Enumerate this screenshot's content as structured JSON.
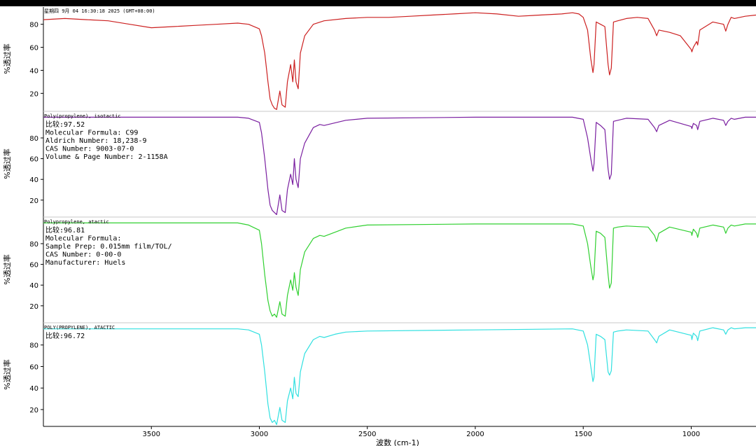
{
  "chart_data": {
    "type": "line",
    "xlabel": "波数 (cm-1)",
    "ylabel": "%透过率",
    "x_reversed": true,
    "xlim": [
      4000,
      700
    ],
    "xticks": [
      3500,
      3000,
      2500,
      2000,
      1500,
      1000
    ],
    "grid": false,
    "panels": [
      {
        "name": "sample",
        "color": "#cc2020",
        "ylim": [
          5,
          95
        ],
        "yticks": [
          20,
          40,
          60,
          80
        ],
        "header": "星期四 9月 04 16:30:18 2025 (GMT+08:00)",
        "info": [],
        "x": [
          4000,
          3900,
          3800,
          3700,
          3600,
          3500,
          3400,
          3300,
          3200,
          3100,
          3050,
          3000,
          2990,
          2975,
          2960,
          2950,
          2940,
          2930,
          2920,
          2905,
          2895,
          2880,
          2870,
          2855,
          2845,
          2838,
          2830,
          2820,
          2810,
          2790,
          2750,
          2700,
          2600,
          2500,
          2400,
          2300,
          2200,
          2100,
          2000,
          1900,
          1800,
          1700,
          1600,
          1550,
          1520,
          1500,
          1480,
          1465,
          1455,
          1450,
          1440,
          1420,
          1400,
          1385,
          1378,
          1370,
          1360,
          1340,
          1300,
          1250,
          1200,
          1170,
          1160,
          1150,
          1100,
          1050,
          1000,
          997,
          990,
          975,
          970,
          960,
          900,
          850,
          840,
          830,
          815,
          800,
          750,
          700
        ],
        "y": [
          84,
          85,
          84,
          83,
          80,
          77,
          78,
          79,
          80,
          81,
          80,
          76,
          70,
          55,
          30,
          15,
          10,
          7,
          6,
          22,
          10,
          8,
          30,
          45,
          30,
          49,
          30,
          24,
          55,
          70,
          80,
          83,
          85,
          86,
          86,
          87,
          88,
          89,
          90,
          89,
          87,
          88,
          89,
          90,
          89,
          86,
          75,
          50,
          38,
          45,
          82,
          80,
          78,
          45,
          36,
          42,
          82,
          83,
          85,
          86,
          85,
          75,
          70,
          75,
          73,
          70,
          58,
          56,
          60,
          65,
          62,
          75,
          82,
          80,
          74,
          80,
          86,
          85,
          87,
          88
        ]
      },
      {
        "name": "Poly(propylene), isotactic",
        "color": "#7a1fa0",
        "ylim": [
          5,
          105
        ],
        "yticks": [
          20,
          40,
          60,
          80
        ],
        "header": "Poly(propylene), isotactic",
        "info": [
          "比较:97.52",
          "Molecular Formula:  C99",
          "Aldrich Number:    18,238-9",
          "CAS Number:     9003-07-0",
          "Volume & Page Number:  2-1158A"
        ],
        "x": [
          4000,
          3100,
          3050,
          3000,
          2990,
          2975,
          2960,
          2950,
          2940,
          2930,
          2920,
          2905,
          2895,
          2880,
          2870,
          2855,
          2845,
          2838,
          2830,
          2820,
          2810,
          2790,
          2750,
          2720,
          2700,
          2600,
          2500,
          2000,
          1550,
          1500,
          1480,
          1465,
          1455,
          1450,
          1440,
          1420,
          1400,
          1385,
          1378,
          1370,
          1360,
          1340,
          1300,
          1200,
          1170,
          1160,
          1150,
          1100,
          1000,
          997,
          990,
          975,
          970,
          960,
          900,
          850,
          840,
          830,
          815,
          800,
          750,
          700
        ],
        "y": [
          100,
          100,
          99,
          95,
          85,
          60,
          30,
          15,
          10,
          8,
          6,
          25,
          10,
          8,
          30,
          45,
          35,
          60,
          40,
          32,
          60,
          75,
          90,
          93,
          92,
          97,
          99,
          100,
          100,
          98,
          80,
          60,
          48,
          55,
          95,
          92,
          88,
          50,
          40,
          45,
          96,
          97,
          99,
          98,
          90,
          86,
          92,
          97,
          91,
          89,
          94,
          92,
          88,
          96,
          99,
          97,
          92,
          96,
          99,
          98,
          100,
          100
        ]
      },
      {
        "name": "Polypropylene, atactic",
        "color": "#30d030",
        "ylim": [
          5,
          105
        ],
        "yticks": [
          20,
          40,
          60,
          80
        ],
        "header": "Polypropylene, atactic",
        "info": [
          "比较:96.81",
          "Molecular Formula:",
          "Sample Prep:  0.015mm film/TOL/",
          "CAS Number:        0-00-0",
          "Manufacturer:  Huels"
        ],
        "x": [
          4000,
          3100,
          3050,
          3000,
          2990,
          2975,
          2960,
          2950,
          2940,
          2930,
          2920,
          2905,
          2895,
          2880,
          2870,
          2855,
          2845,
          2838,
          2830,
          2820,
          2810,
          2790,
          2750,
          2720,
          2700,
          2650,
          2600,
          2500,
          2000,
          1550,
          1500,
          1480,
          1465,
          1455,
          1450,
          1440,
          1420,
          1400,
          1385,
          1378,
          1370,
          1360,
          1340,
          1300,
          1200,
          1170,
          1160,
          1150,
          1100,
          1000,
          997,
          990,
          975,
          970,
          960,
          900,
          850,
          840,
          830,
          815,
          800,
          750,
          700
        ],
        "y": [
          100,
          100,
          98,
          93,
          80,
          50,
          25,
          15,
          10,
          12,
          9,
          24,
          12,
          10,
          30,
          45,
          35,
          52,
          38,
          30,
          55,
          72,
          85,
          88,
          87,
          91,
          95,
          98,
          99,
          99,
          97,
          80,
          58,
          45,
          50,
          92,
          90,
          86,
          50,
          37,
          42,
          95,
          96,
          97,
          96,
          88,
          82,
          90,
          96,
          91,
          88,
          94,
          90,
          86,
          95,
          98,
          96,
          90,
          95,
          98,
          97,
          99,
          99
        ]
      },
      {
        "name": "POLY(PROPYLENE), ATACTIC",
        "color": "#30e0e0",
        "ylim": [
          5,
          100
        ],
        "yticks": [
          20,
          40,
          60,
          80
        ],
        "header": "POLY(PROPYLENE), ATACTIC",
        "info": [
          "比较:96.72"
        ],
        "x": [
          4000,
          3100,
          3050,
          3000,
          2990,
          2975,
          2960,
          2950,
          2940,
          2930,
          2920,
          2905,
          2895,
          2880,
          2870,
          2855,
          2845,
          2838,
          2830,
          2820,
          2810,
          2790,
          2750,
          2720,
          2700,
          2650,
          2600,
          2500,
          2000,
          1550,
          1500,
          1480,
          1465,
          1455,
          1450,
          1440,
          1420,
          1400,
          1385,
          1378,
          1370,
          1360,
          1340,
          1300,
          1200,
          1170,
          1160,
          1150,
          1100,
          1000,
          997,
          990,
          975,
          970,
          960,
          900,
          850,
          840,
          830,
          815,
          800,
          750,
          700
        ],
        "y": [
          95,
          95,
          94,
          90,
          80,
          55,
          25,
          12,
          8,
          10,
          6,
          22,
          10,
          8,
          28,
          40,
          30,
          50,
          35,
          32,
          55,
          72,
          85,
          88,
          87,
          90,
          92,
          93,
          94,
          95,
          93,
          80,
          60,
          46,
          50,
          90,
          88,
          85,
          55,
          52,
          56,
          92,
          93,
          94,
          93,
          85,
          82,
          88,
          94,
          89,
          85,
          91,
          88,
          84,
          93,
          96,
          94,
          90,
          94,
          96,
          95,
          96,
          96
        ]
      }
    ]
  }
}
